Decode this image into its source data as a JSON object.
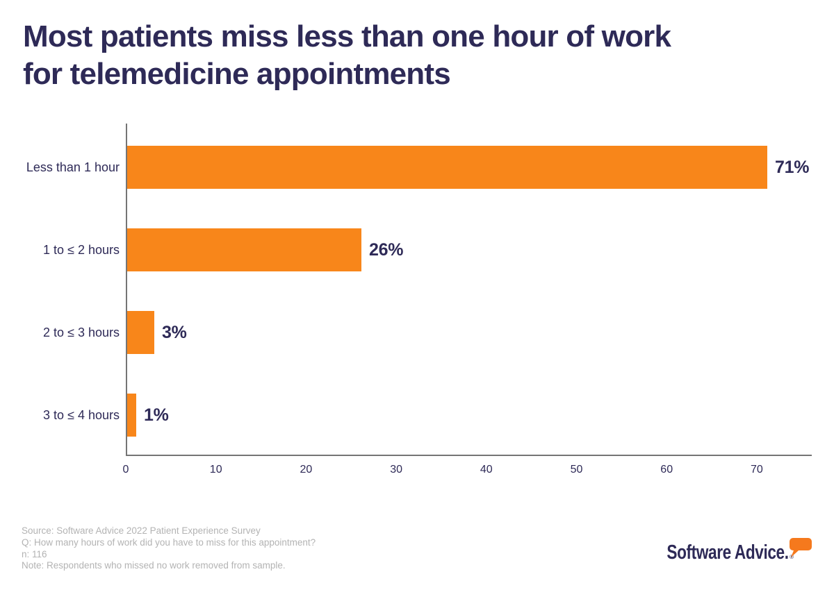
{
  "header": {
    "title_lines": [
      "Most patients miss less than one hour of work",
      "for telemedicine appointments"
    ],
    "title_color": "#2e2a57"
  },
  "chart_data": {
    "type": "bar",
    "orientation": "horizontal",
    "title": "Most patients miss less than one hour of work for telemedicine appointments",
    "categories": [
      "Less than 1 hour",
      "1 to ≤ 2 hours",
      "2 to ≤ 3 hours",
      "3 to ≤ 4 hours"
    ],
    "values": [
      71,
      26,
      3,
      1
    ],
    "value_labels": [
      "71%",
      "26%",
      "3%",
      "1%"
    ],
    "xlabel": "",
    "ylabel": "",
    "xticks": [
      0,
      10,
      20,
      30,
      40,
      50,
      60,
      70
    ],
    "xlim": [
      0,
      76
    ],
    "grid": false,
    "legend": false,
    "bar_color": "#f8861a",
    "label_color": "#2e2a57",
    "axis_color": "#757575"
  },
  "footer": {
    "lines": [
      "Source: Software Advice 2022 Patient Experience Survey",
      "Q: How many hours of work did you have to miss for this appointment?",
      "n: 116",
      "Note: Respondents who missed no work removed from sample."
    ],
    "text_color": "#b3b3b3"
  },
  "logo": {
    "text": "Software Advice.",
    "registered_mark": "®",
    "text_color": "#2e2a57",
    "bubble_color": "#f5791d"
  }
}
